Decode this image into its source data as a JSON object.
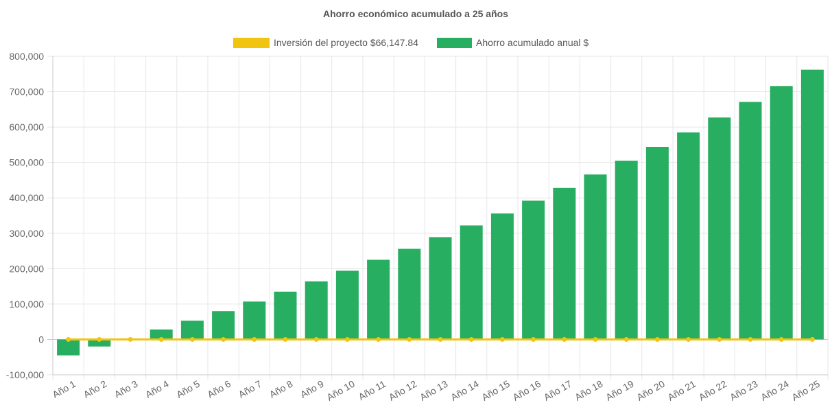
{
  "chart_data": {
    "type": "bar",
    "title": "Ahorro económico acumulado a 25 años",
    "categories": [
      "Año 1",
      "Año 2",
      "Año 3",
      "Año 4",
      "Año 5",
      "Año 6",
      "Año 7",
      "Año 8",
      "Año 9",
      "Año 10",
      "Año 11",
      "Año 12",
      "Año 13",
      "Año 14",
      "Año 15",
      "Año 16",
      "Año 17",
      "Año 18",
      "Año 19",
      "Año 20",
      "Año 21",
      "Año 22",
      "Año 23",
      "Año 24",
      "Año 25"
    ],
    "series": [
      {
        "name": "Inversión del proyecto $66,147.84",
        "type": "line",
        "color": "#f1c40f",
        "values": [
          0,
          0,
          0,
          0,
          0,
          0,
          0,
          0,
          0,
          0,
          0,
          0,
          0,
          0,
          0,
          0,
          0,
          0,
          0,
          0,
          0,
          0,
          0,
          0,
          0
        ]
      },
      {
        "name": "Ahorro acumulado anual $",
        "type": "bar",
        "color": "#27ae60",
        "values": [
          -45000,
          -20000,
          3000,
          28000,
          53000,
          80000,
          107000,
          135000,
          164000,
          194000,
          225000,
          256000,
          289000,
          322000,
          356000,
          392000,
          428000,
          466000,
          505000,
          544000,
          585000,
          627000,
          671000,
          716000,
          762000
        ]
      }
    ],
    "yticks": [
      "800,000",
      "700,000",
      "600,000",
      "500,000",
      "400,000",
      "300,000",
      "200,000",
      "100,000",
      "0",
      "-100,000"
    ],
    "ylim": [
      -100000,
      800000
    ],
    "grid": true,
    "legend_position": "top"
  }
}
